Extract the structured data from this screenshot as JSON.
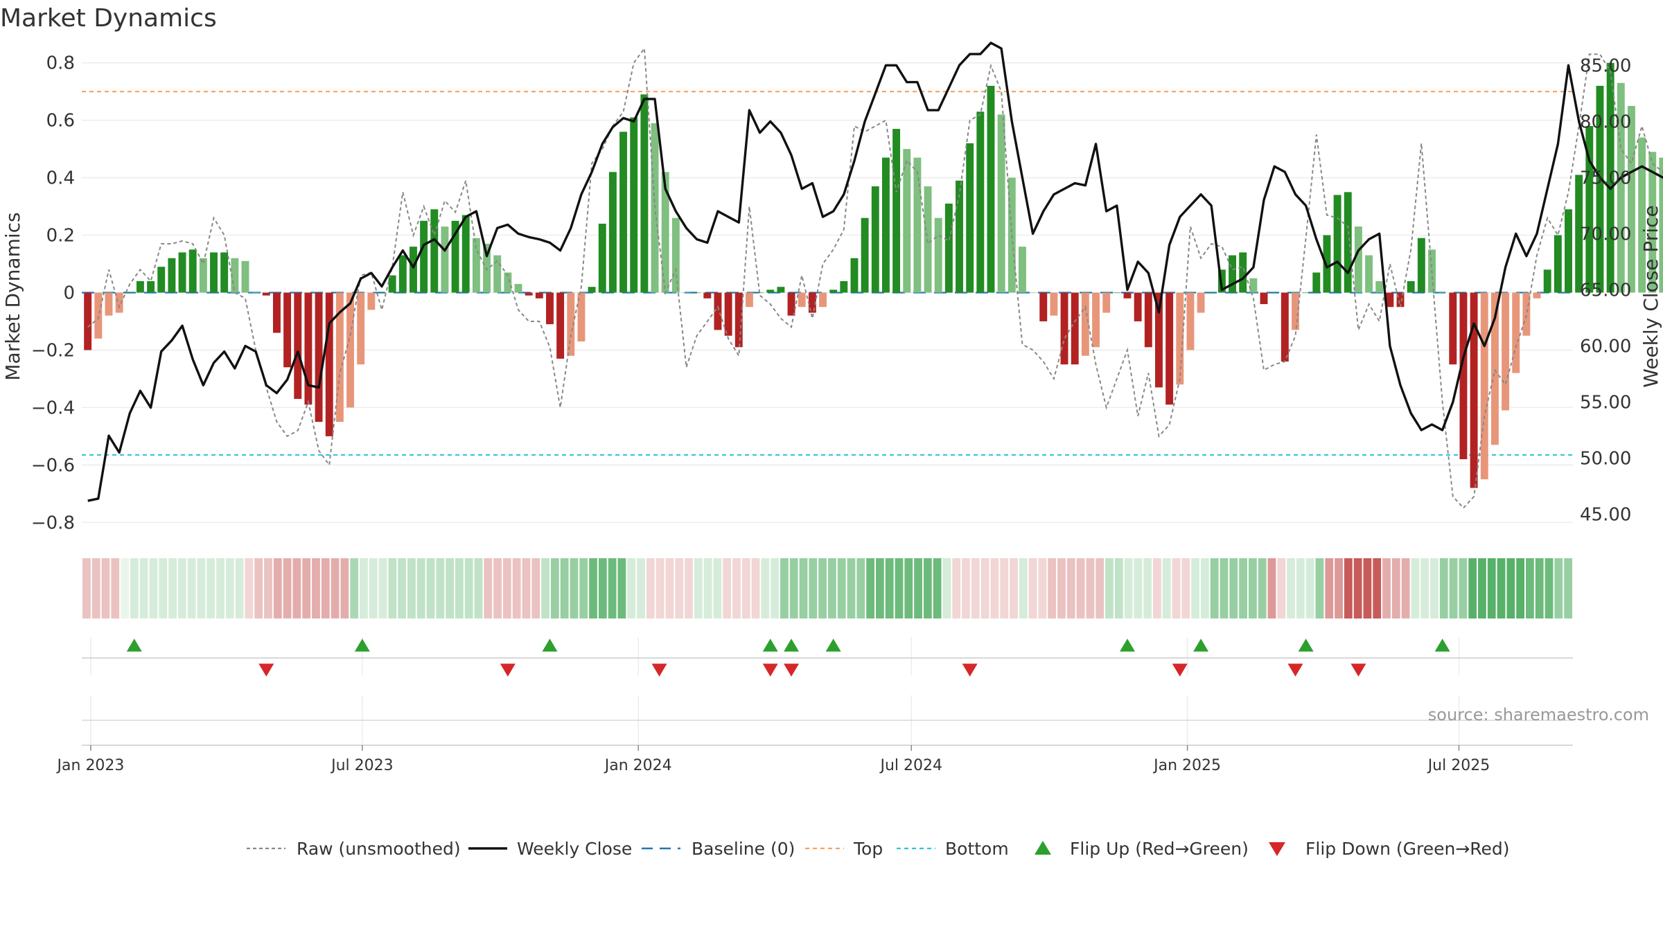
{
  "chart_data": {
    "type": "bar",
    "title": "Market Dynamics",
    "ylabel": "Market Dynamics",
    "y2label": "Weekly Close Price",
    "source": "source: sharemaestro.com",
    "ylim": [
      -0.85,
      0.85
    ],
    "y2lim": [
      43,
      86.5
    ],
    "xlim": [
      "2022-12-26",
      "2025-09-15"
    ],
    "left_ticks": [
      {
        "v": 0.8,
        "label": "0.8"
      },
      {
        "v": 0.6,
        "label": "0.6"
      },
      {
        "v": 0.4,
        "label": "0.4"
      },
      {
        "v": 0.2,
        "label": "0.2"
      },
      {
        "v": 0,
        "label": "0"
      },
      {
        "v": -0.2,
        "label": "−0.2"
      },
      {
        "v": -0.4,
        "label": "−0.4"
      },
      {
        "v": -0.6,
        "label": "−0.6"
      },
      {
        "v": -0.8,
        "label": "−0.8"
      }
    ],
    "right_ticks": [
      {
        "v": 85,
        "label": "85.00"
      },
      {
        "v": 80,
        "label": "80.00"
      },
      {
        "v": 75,
        "label": "75.00"
      },
      {
        "v": 70,
        "label": "70.00"
      },
      {
        "v": 65,
        "label": "65.00"
      },
      {
        "v": 60,
        "label": "60.00"
      },
      {
        "v": 55,
        "label": "55.00"
      },
      {
        "v": 50,
        "label": "50.00"
      },
      {
        "v": 45,
        "label": "45.00"
      }
    ],
    "x_ticks": [
      {
        "date": "2023-01-01",
        "label": "Jan 2023"
      },
      {
        "date": "2023-07-01",
        "label": "Jul 2023"
      },
      {
        "date": "2024-01-01",
        "label": "Jan 2024"
      },
      {
        "date": "2024-07-01",
        "label": "Jul 2024"
      },
      {
        "date": "2025-01-01",
        "label": "Jan 2025"
      },
      {
        "date": "2025-07-01",
        "label": "Jul 2025"
      }
    ],
    "top_level": 0.7,
    "bottom_level": -0.565,
    "baseline": 0,
    "start_date": "2022-12-30",
    "week_step_days": 7,
    "smoothed": [
      -0.2,
      -0.16,
      -0.08,
      -0.07,
      0.0,
      0.04,
      0.04,
      0.09,
      0.12,
      0.14,
      0.15,
      0.12,
      0.14,
      0.14,
      0.12,
      0.11,
      0.0,
      -0.01,
      -0.14,
      -0.26,
      -0.37,
      -0.39,
      -0.45,
      -0.5,
      -0.45,
      -0.4,
      -0.25,
      -0.06,
      0.0,
      0.06,
      0.13,
      0.16,
      0.25,
      0.29,
      0.23,
      0.25,
      0.27,
      0.19,
      0.17,
      0.13,
      0.07,
      0.03,
      -0.01,
      -0.02,
      -0.11,
      -0.23,
      -0.22,
      -0.17,
      0.02,
      0.24,
      0.42,
      0.56,
      0.61,
      0.69,
      0.59,
      0.42,
      0.26,
      0.0,
      0.0,
      -0.02,
      -0.13,
      -0.15,
      -0.19,
      -0.05,
      0.0,
      0.01,
      0.02,
      -0.08,
      -0.05,
      -0.07,
      -0.05,
      0.01,
      0.04,
      0.12,
      0.26,
      0.37,
      0.47,
      0.57,
      0.5,
      0.47,
      0.37,
      0.26,
      0.31,
      0.39,
      0.52,
      0.63,
      0.72,
      0.62,
      0.4,
      0.16,
      0.0,
      -0.1,
      -0.08,
      -0.25,
      -0.25,
      -0.22,
      -0.19,
      -0.07,
      0.0,
      -0.02,
      -0.1,
      -0.19,
      -0.33,
      -0.39,
      -0.32,
      -0.2,
      -0.07,
      0.0,
      0.08,
      0.13,
      0.14,
      0.05,
      -0.04,
      0.0,
      -0.24,
      -0.13,
      0.0,
      0.07,
      0.2,
      0.34,
      0.35,
      0.23,
      0.13,
      0.04,
      -0.05,
      -0.05,
      0.04,
      0.19,
      0.15,
      0.0,
      -0.25,
      -0.58,
      -0.68,
      -0.65,
      -0.53,
      -0.41,
      -0.28,
      -0.15,
      -0.02,
      0.08,
      0.2,
      0.29,
      0.41,
      0.58,
      0.72,
      0.8,
      0.73,
      0.65,
      0.54,
      0.49,
      0.47,
      0.41,
      0.34,
      0.28
    ],
    "raw": [
      -0.12,
      -0.09,
      0.08,
      -0.05,
      0.03,
      0.08,
      0.04,
      0.17,
      0.17,
      0.18,
      0.17,
      0.1,
      0.26,
      0.2,
      0.0,
      -0.02,
      -0.2,
      -0.33,
      -0.45,
      -0.5,
      -0.48,
      -0.38,
      -0.55,
      -0.6,
      -0.28,
      -0.15,
      0.06,
      0.07,
      -0.06,
      0.09,
      0.35,
      0.2,
      0.3,
      0.2,
      0.32,
      0.28,
      0.39,
      0.15,
      0.08,
      0.11,
      0.06,
      -0.06,
      -0.1,
      -0.1,
      -0.19,
      -0.4,
      -0.15,
      0.02,
      0.45,
      0.5,
      0.58,
      0.63,
      0.8,
      0.85,
      0.3,
      0.0,
      0.08,
      -0.26,
      -0.15,
      -0.1,
      -0.05,
      -0.16,
      -0.22,
      0.3,
      -0.01,
      -0.04,
      -0.09,
      -0.12,
      0.06,
      -0.09,
      0.1,
      0.15,
      0.22,
      0.58,
      0.56,
      0.58,
      0.6,
      0.35,
      0.46,
      0.42,
      0.17,
      0.2,
      0.18,
      0.34,
      0.6,
      0.62,
      0.79,
      0.7,
      0.2,
      -0.18,
      -0.2,
      -0.24,
      -0.3,
      -0.16,
      -0.1,
      -0.05,
      -0.25,
      -0.4,
      -0.3,
      -0.2,
      -0.43,
      -0.28,
      -0.5,
      -0.46,
      -0.3,
      0.23,
      0.12,
      0.17,
      0.16,
      0.08,
      0.09,
      -0.02,
      -0.27,
      -0.25,
      -0.24,
      -0.15,
      0.19,
      0.55,
      0.27,
      0.26,
      0.23,
      -0.13,
      -0.04,
      -0.1,
      0.1,
      -0.05,
      0.15,
      0.52,
      0.07,
      -0.38,
      -0.71,
      -0.75,
      -0.71,
      -0.43,
      -0.27,
      -0.32,
      -0.19,
      -0.08,
      0.13,
      0.26,
      0.2,
      0.35,
      0.58,
      0.83,
      0.83,
      0.77,
      0.5,
      0.45,
      0.58,
      0.45,
      0.42,
      0.2,
      0.23
    ],
    "weekly_close": [
      46.2,
      46.4,
      52.0,
      50.5,
      54.0,
      56.0,
      54.5,
      59.5,
      60.5,
      61.8,
      58.8,
      56.5,
      58.5,
      59.5,
      58.0,
      60.0,
      59.5,
      56.5,
      55.8,
      57.0,
      59.5,
      56.5,
      56.3,
      62.0,
      63.0,
      63.8,
      66.0,
      66.5,
      65.3,
      67.0,
      68.5,
      67.0,
      69.0,
      69.5,
      68.5,
      70.0,
      71.5,
      72.0,
      68.0,
      70.5,
      70.8,
      70.0,
      69.7,
      69.5,
      69.2,
      68.5,
      70.5,
      73.5,
      75.5,
      78.0,
      79.5,
      80.3,
      80.0,
      82.0,
      82.0,
      74.0,
      72.0,
      70.5,
      69.5,
      69.2,
      72.0,
      71.5,
      71.0,
      81.0,
      79.0,
      80.0,
      79.0,
      77.0,
      74.0,
      74.5,
      71.5,
      72.0,
      73.5,
      76.5,
      80.0,
      82.5,
      85.0,
      85.0,
      83.5,
      83.5,
      81.0,
      81.0,
      83.0,
      85.0,
      86.0,
      86.0,
      87.0,
      86.5,
      80.0,
      75.0,
      70.0,
      72.0,
      73.5,
      74.0,
      74.5,
      74.3,
      78.0,
      72.0,
      72.5,
      65.0,
      67.5,
      66.5,
      63.0,
      69.0,
      71.5,
      72.5,
      73.5,
      72.5,
      65.0,
      65.5,
      66.0,
      67.0,
      73.0,
      76.0,
      75.5,
      73.5,
      72.5,
      69.5,
      67.0,
      67.5,
      66.5,
      68.5,
      69.5,
      70.0,
      60.0,
      56.5,
      54.0,
      52.5,
      53.0,
      52.5,
      55.0,
      59.0,
      62.0,
      60.0,
      62.5,
      67.0,
      70.0,
      68.0,
      70.0,
      74.0,
      78.0,
      85.0,
      80.0,
      76.5,
      75.0,
      74.0,
      75.0,
      75.5,
      76.0,
      75.5,
      75.0,
      74.5,
      75.3
    ],
    "strip_intensity": [
      0.3,
      0.3,
      0.3,
      0.3,
      0.1,
      0.2,
      0.2,
      0.2,
      0.2,
      0.2,
      0.2,
      0.2,
      0.2,
      0.2,
      0.2,
      0.2,
      0.2,
      0.2,
      0.3,
      0.3,
      0.4,
      0.4,
      0.4,
      0.4,
      0.4,
      0.4,
      0.4,
      0.4,
      0.4,
      0.2,
      0.2,
      0.2,
      0.3,
      0.3,
      0.3,
      0.3,
      0.3,
      0.3,
      0.3,
      0.3,
      0.3,
      0.3,
      0.3,
      0.3,
      0.3,
      0.3,
      0.3,
      0.3,
      0.3,
      0.5,
      0.5,
      0.5,
      0.5,
      0.7,
      0.7,
      0.7,
      0.7,
      0.2,
      0.2,
      0.2,
      0.2,
      0.2,
      0.2,
      0.2,
      0.2,
      0.2,
      0.2,
      0.2,
      0.2,
      0.2,
      0.2,
      0.2,
      0.2,
      0.5,
      0.5,
      0.5,
      0.5,
      0.5,
      0.5,
      0.5,
      0.5,
      0.5,
      0.7,
      0.7,
      0.7,
      0.7,
      0.7,
      0.7,
      0.7,
      0.7,
      0.2,
      0.2,
      0.2,
      0.2,
      0.2,
      0.2,
      0.2,
      0.2,
      0.2,
      0.2,
      0.2,
      0.3,
      0.3,
      0.3,
      0.3,
      0.3,
      0.3,
      0.3,
      0.3,
      0.2,
      0.2,
      0.2,
      0.2,
      0.2,
      0.2,
      0.2,
      0.2,
      0.2,
      0.5,
      0.5,
      0.5,
      0.5,
      0.5,
      0.5,
      0.5,
      0.2,
      0.2,
      0.2,
      0.2,
      0.5,
      0.5,
      0.5,
      0.8,
      0.8,
      0.8,
      0.8,
      0.4,
      0.4,
      0.4,
      0.2,
      0.2,
      0.2,
      0.5,
      0.5,
      0.5,
      0.8,
      0.8,
      0.8,
      0.8,
      0.8,
      0.8,
      0.7,
      0.7,
      0.7,
      0.5,
      0.5
    ],
    "flip_up_dates": [
      "2023-01-30",
      "2023-07-01",
      "2023-11-03",
      "2024-03-29",
      "2024-04-12",
      "2024-05-10",
      "2024-11-22",
      "2025-01-10",
      "2025-03-21",
      "2025-06-20"
    ],
    "flip_down_dates": [
      "2023-04-28",
      "2023-10-06",
      "2024-01-15",
      "2024-03-29",
      "2024-04-12",
      "2024-08-09",
      "2024-12-27",
      "2025-03-14",
      "2025-04-25"
    ],
    "legend": {
      "raw": "Raw (unsmoothed)",
      "weekly_close": "Weekly Close",
      "baseline": "Baseline (0)",
      "top": "Top",
      "bottom": "Bottom",
      "flip_up": "Flip Up (Red→Green)",
      "flip_down": "Flip Down (Green→Red)"
    },
    "legend_placement": "bottom-center",
    "grid": true,
    "colors": {
      "pos_strong": "#228b22",
      "pos_weak": "#7fbf7f",
      "neg_strong": "#b22222",
      "neg_weak": "#e8967a",
      "raw": "#888888",
      "close": "#111111",
      "baseline": "#1f77b4",
      "top": "#f4a261",
      "bottom": "#2ec4d6",
      "flip_up": "#2ca02c",
      "flip_down": "#d62728"
    }
  }
}
